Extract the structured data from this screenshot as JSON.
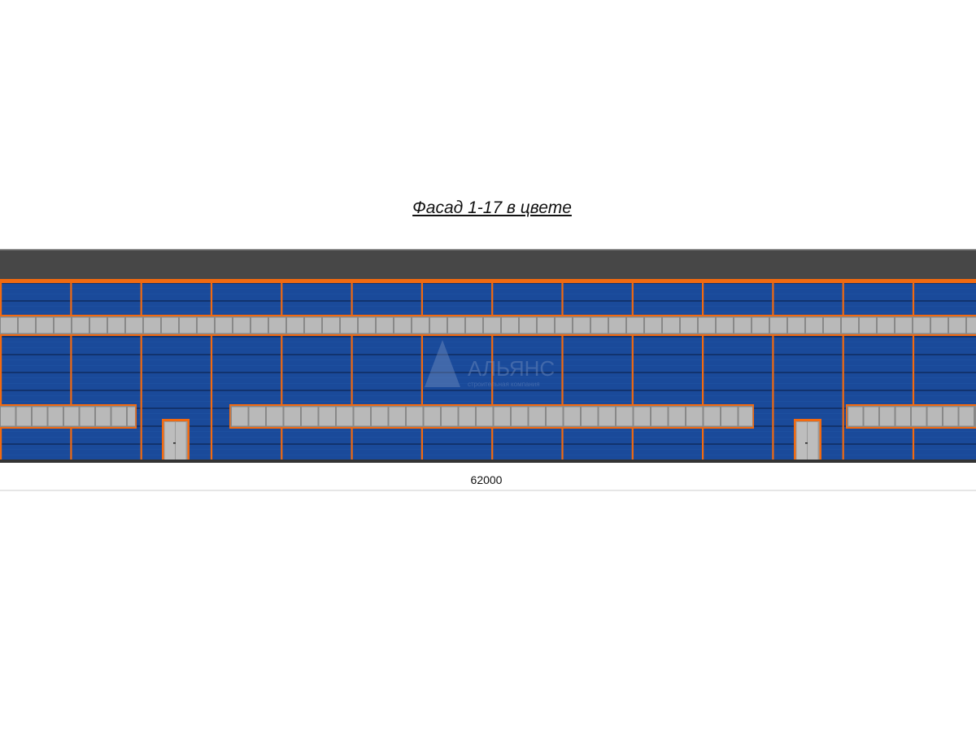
{
  "title": "Фасад 1-17 в цвете",
  "dimension": "62000",
  "watermark": {
    "name": "АЛЬЯНС",
    "tagline": "строительная компания"
  },
  "colors": {
    "roof": "#474747",
    "trim": "#f26a10",
    "wall": "#1a4a9a",
    "window": "#b9b9b9",
    "ground": "#333333"
  }
}
